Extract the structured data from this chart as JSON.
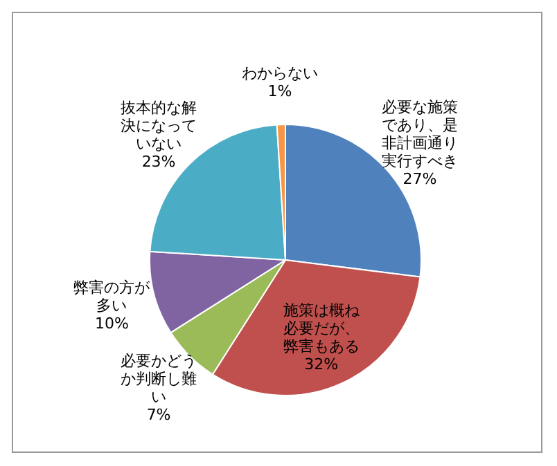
{
  "chart_data": {
    "type": "pie",
    "categories": [
      "必要な施策であり、是非計画通り実行すべき",
      "施策は概ね必要だが、弊害もある",
      "必要かどうか判断し難い",
      "弊害の方が多い",
      "抜本的な解決になっていない",
      "わからない"
    ],
    "values": [
      27,
      32,
      7,
      10,
      23,
      1
    ],
    "colors": [
      "#4f81bd",
      "#c0504d",
      "#9bbb59",
      "#8064a2",
      "#4bacc6",
      "#f79646"
    ],
    "value_labels": [
      "27%",
      "32%",
      "7%",
      "10%",
      "23%",
      "1%"
    ]
  }
}
